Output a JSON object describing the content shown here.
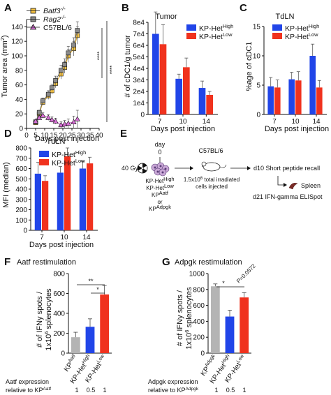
{
  "colors": {
    "kp_het_high": "#2145e8",
    "kp_het_low": "#f0321e",
    "batf3": "#f5c242",
    "rag2": "#8c8c8c",
    "c57": "#d770d6",
    "kp_aatf": "#b4b4b4",
    "kp_adpgk": "#b4b4b4",
    "axis": "#111111"
  },
  "panelA": {
    "label": "A",
    "legend": [
      "Batf3",
      "Rag2",
      "C57BL/6"
    ],
    "legend_sup": [
      "-/-",
      "-/-",
      ""
    ],
    "ylabel": "Tumor area (mm",
    "ylabel_sup": "2",
    "ylabel_end": ")",
    "xlabel": "Days post injection",
    "significance": [
      "****",
      "****"
    ]
  },
  "panelB": {
    "label": "B",
    "title": "Tumor",
    "ylabel": "# of cDC1/g tumor",
    "xlabel": "Days post injection",
    "legend": [
      "KP-Het",
      "KP-Het"
    ],
    "legend_sup": [
      "High",
      "Low"
    ]
  },
  "panelC": {
    "label": "C",
    "title": "TdLN",
    "ylabel": "%age of cDC1",
    "xlabel": "Days post injection",
    "legend": [
      "KP-Het",
      "KP-Het"
    ],
    "legend_sup": [
      "High",
      "Low"
    ]
  },
  "panelD": {
    "label": "D",
    "title": "TdLN",
    "ylabel": "MFI (median)",
    "xlabel": "Days post injection",
    "legend": [
      "KP-Het",
      "KP-Het"
    ],
    "legend_sup": [
      "High",
      "Low"
    ]
  },
  "panelE": {
    "label": "E",
    "day_label": "day",
    "day_value": "0",
    "dose": "40 Gy",
    "cells": [
      "KP-Het",
      "KP-Het",
      "KP",
      "or",
      "KP"
    ],
    "cells_sup": [
      "High",
      "Low",
      "Aatf",
      "",
      "Adpgk"
    ],
    "mouse_label": "C57BL/6",
    "inject_line1": "1.5x10",
    "inject_sup": "6",
    "inject_line1_end": " total irradiated",
    "inject_line2": "cells injected",
    "recall": "d10 Short peptide recall",
    "spleen": "Spleen",
    "elispot": "d21 IFN-gamma ELISpot"
  },
  "panelF": {
    "label": "F",
    "title": "Aatf restimulation",
    "ylabel1": "# of IFNy spots /",
    "ylabel2": "1x10",
    "ylabel2_sup": "6",
    "ylabel2_end": " splenocytes",
    "categories": [
      "KP",
      "KP-Het",
      "KP-Het"
    ],
    "categories_sup": [
      "Aatf",
      "High",
      "Low"
    ],
    "significance": [
      "**",
      "*"
    ],
    "expr_label1": "Aatf expression",
    "expr_label2": "relative to KP",
    "expr_label2_sup": "Aatf",
    "expr_values": [
      "1",
      "0.5",
      "1"
    ]
  },
  "panelG": {
    "label": "G",
    "title": "Adpgk restimulation",
    "ylabel1": "# of IFNy spots /",
    "ylabel2": "1x10",
    "ylabel2_sup": "6",
    "ylabel2_end": " splenocytes",
    "categories": [
      "KP",
      "KP-Het",
      "KP-Het"
    ],
    "categories_sup": [
      "Adpgk",
      "High",
      "Low"
    ],
    "significance": [
      "*",
      "P=0.0572"
    ],
    "expr_label1": "Adpgk expression",
    "expr_label2": "relative to KP",
    "expr_label2_sup": "Adpgk",
    "expr_values": [
      "1",
      "0.5",
      "1"
    ]
  },
  "chart_data": [
    {
      "panel": "A",
      "type": "line",
      "xlabel": "Days post injection",
      "ylabel": "Tumor area (mm2)",
      "xlim": [
        0,
        40
      ],
      "ylim": [
        0,
        150
      ],
      "xticks": [
        0,
        5,
        10,
        15,
        20,
        25,
        30,
        35,
        40
      ],
      "yticks": [
        0,
        20,
        40,
        60,
        80,
        100,
        120,
        140
      ],
      "series": [
        {
          "name": "Batf3-/-",
          "marker": "square",
          "x": [
            5,
            7,
            9,
            12,
            14,
            16,
            19,
            21,
            23,
            26,
            28
          ],
          "y": [
            8,
            20,
            36,
            45,
            52,
            62,
            75,
            84,
            100,
            110,
            128
          ],
          "err": [
            2,
            3,
            4,
            5,
            5,
            6,
            7,
            8,
            9,
            10,
            12
          ]
        },
        {
          "name": "Rag2-/-",
          "marker": "square",
          "x": [
            5,
            7,
            9,
            12,
            14,
            16,
            19,
            21,
            23,
            26,
            28
          ],
          "y": [
            9,
            22,
            38,
            47,
            56,
            66,
            80,
            88,
            104,
            115,
            135
          ],
          "err": [
            2,
            3,
            4,
            5,
            5,
            6,
            7,
            8,
            9,
            10,
            12
          ]
        },
        {
          "name": "C57BL/6",
          "marker": "triangle",
          "x": [
            5,
            7,
            9,
            12,
            14,
            16,
            19,
            21,
            23,
            26,
            28
          ],
          "y": [
            10,
            15,
            18,
            15,
            12,
            10,
            5,
            6,
            7,
            9,
            13
          ],
          "err": [
            2,
            3,
            4,
            4,
            4,
            4,
            4,
            5,
            6,
            8,
            12
          ]
        }
      ]
    },
    {
      "panel": "B",
      "type": "bar",
      "title": "Tumor",
      "xlabel": "Days post injection",
      "ylabel": "# of cDC1/g tumor",
      "categories": [
        "7",
        "10",
        "14"
      ],
      "ylim": [
        0,
        80000
      ],
      "yticks": [
        0,
        10000,
        20000,
        30000,
        40000,
        50000,
        60000,
        70000,
        80000
      ],
      "ytick_labels": [
        "0",
        "1e4",
        "2e4",
        "3e4",
        "4e4",
        "5e4",
        "6e4",
        "7e4",
        "8e4"
      ],
      "series": [
        {
          "name": "KP-Het High",
          "values": [
            70000,
            31000,
            23000
          ],
          "err": [
            19000,
            4000,
            6000
          ]
        },
        {
          "name": "KP-Het Low",
          "values": [
            61000,
            41000,
            17000
          ],
          "err": [
            17000,
            8000,
            3000
          ]
        }
      ]
    },
    {
      "panel": "C",
      "type": "bar",
      "title": "TdLN",
      "xlabel": "Days post injection",
      "ylabel": "%age of cDC1",
      "categories": [
        "7",
        "10",
        "14"
      ],
      "ylim": [
        0,
        15
      ],
      "yticks": [
        0,
        5,
        10,
        15
      ],
      "series": [
        {
          "name": "KP-Het High",
          "values": [
            4.8,
            6.0,
            10.0
          ],
          "err": [
            1.5,
            1.2,
            2.0
          ]
        },
        {
          "name": "KP-Het Low",
          "values": [
            4.6,
            5.8,
            4.6
          ],
          "err": [
            1.3,
            1.5,
            1.2
          ]
        }
      ]
    },
    {
      "panel": "D",
      "type": "bar",
      "title": "TdLN",
      "xlabel": "Days post injection",
      "ylabel": "MFI (median)",
      "categories": [
        "7",
        "10",
        "14"
      ],
      "ylim": [
        0,
        800
      ],
      "yticks": [
        0,
        100,
        200,
        300,
        400,
        500,
        600,
        700,
        800
      ],
      "series": [
        {
          "name": "KP-Het High",
          "values": [
            550,
            560,
            600
          ],
          "err": [
            110,
            60,
            70
          ]
        },
        {
          "name": "KP-Het Low",
          "values": [
            480,
            720,
            650
          ],
          "err": [
            50,
            80,
            60
          ]
        }
      ]
    },
    {
      "panel": "F",
      "type": "bar",
      "title": "Aatf restimulation",
      "ylabel": "# of IFNy spots / 1x10^6 splenocytes",
      "categories": [
        "KP Aatf",
        "KP-Het High",
        "KP-Het Low"
      ],
      "ylim": [
        0,
        800
      ],
      "yticks": [
        0,
        200,
        400,
        600,
        800
      ],
      "values": [
        160,
        265,
        590
      ],
      "err": [
        50,
        80,
        90
      ],
      "colors": [
        "#b4b4b4",
        "#2145e8",
        "#f0321e"
      ]
    },
    {
      "panel": "G",
      "type": "bar",
      "title": "Adpgk restimulation",
      "ylabel": "# of IFNy spots / 1x10^6 splenocytes",
      "categories": [
        "KP Adpgk",
        "KP-Het High",
        "KP-Het Low"
      ],
      "ylim": [
        0,
        1000
      ],
      "yticks": [
        0,
        200,
        400,
        600,
        800,
        1000
      ],
      "values": [
        840,
        460,
        700
      ],
      "err": [
        30,
        80,
        60
      ],
      "colors": [
        "#b4b4b4",
        "#2145e8",
        "#f0321e"
      ]
    }
  ]
}
